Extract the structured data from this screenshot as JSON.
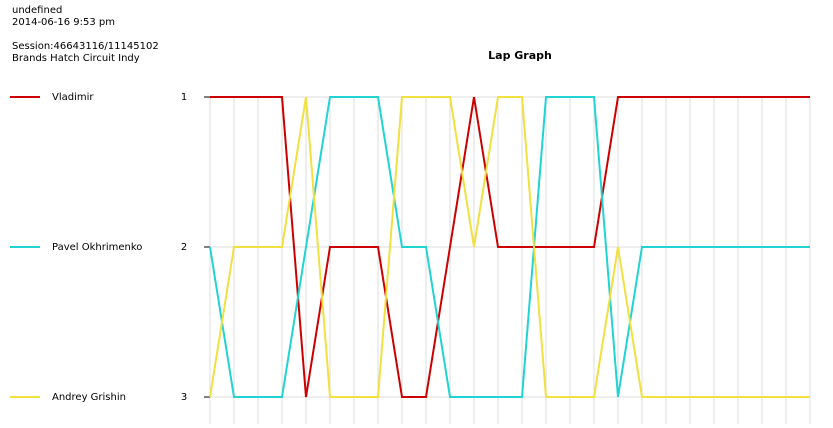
{
  "header": {
    "line1": "undefined",
    "date": "2014-06-16 9:53 pm",
    "session": "Session:46643116/11145102",
    "track": "Brands Hatch Circuit Indy"
  },
  "chart_data": {
    "type": "line",
    "title": "Lap Graph",
    "ylim": [
      3,
      1
    ],
    "yticks": [
      1,
      2,
      3
    ],
    "grid": true,
    "series": [
      {
        "name": "Vladimir",
        "color": "#cc0000",
        "values": [
          1,
          1,
          1,
          1,
          3,
          2,
          2,
          2,
          3,
          3,
          2,
          1,
          2,
          2,
          2,
          2,
          2,
          1,
          1,
          1,
          1,
          1,
          1,
          1,
          1,
          1
        ]
      },
      {
        "name": "Pavel Okhrimenko",
        "color": "#22d3d3",
        "values": [
          2,
          3,
          3,
          3,
          2,
          1,
          1,
          1,
          2,
          2,
          3,
          3,
          3,
          3,
          1,
          1,
          1,
          3,
          2,
          2,
          2,
          2,
          2,
          2,
          2,
          2
        ]
      },
      {
        "name": "Andrey Grishin",
        "color": "#f0e040",
        "values": [
          3,
          2,
          2,
          2,
          1,
          3,
          3,
          3,
          1,
          1,
          1,
          2,
          1,
          1,
          3,
          3,
          3,
          2,
          3,
          3,
          3,
          3,
          3,
          3,
          3,
          3
        ]
      }
    ]
  }
}
